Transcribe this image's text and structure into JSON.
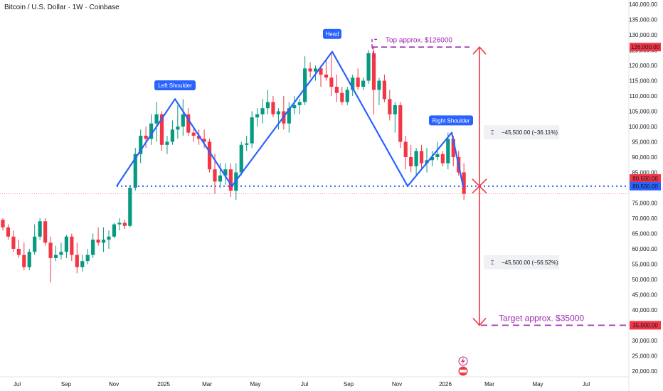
{
  "header": {
    "title": "Bitcoin / U.S. Dollar · 1W · Coinbase"
  },
  "chart_data": {
    "type": "candlestick",
    "ylim": [
      20000,
      140000
    ],
    "y_ticks": [
      20000,
      25000,
      30000,
      35000,
      40000,
      45000,
      50000,
      55000,
      60000,
      65000,
      70000,
      75000,
      80000,
      85000,
      90000,
      95000,
      100000,
      105000,
      110000,
      115000,
      120000,
      125000,
      130000,
      135000,
      140000
    ],
    "x_labels": [
      "Jul",
      "Sep",
      "Nov",
      "2025",
      "Mar",
      "May",
      "Jul",
      "Sep",
      "Nov",
      "2026",
      "Mar",
      "May",
      "Jul"
    ],
    "candles": [
      [
        69500,
        70000,
        66000,
        67000
      ],
      [
        67000,
        68000,
        63000,
        64000
      ],
      [
        64000,
        66000,
        59000,
        60000
      ],
      [
        60000,
        63000,
        57000,
        58000
      ],
      [
        58000,
        62000,
        53000,
        54000
      ],
      [
        54000,
        60000,
        53000,
        59000
      ],
      [
        59000,
        68000,
        58000,
        64000
      ],
      [
        64000,
        70000,
        63000,
        69000
      ],
      [
        69000,
        70000,
        61000,
        62000
      ],
      [
        62000,
        64000,
        49000,
        57000
      ],
      [
        57000,
        61000,
        56000,
        58000
      ],
      [
        58000,
        62000,
        56500,
        59000
      ],
      [
        59000,
        64500,
        57000,
        64000
      ],
      [
        64000,
        65000,
        56000,
        58000
      ],
      [
        58000,
        62000,
        52000,
        54000
      ],
      [
        54000,
        58000,
        52500,
        56000
      ],
      [
        56000,
        60000,
        55000,
        58000
      ],
      [
        58000,
        65000,
        57000,
        63000
      ],
      [
        63000,
        67000,
        61000,
        62000
      ],
      [
        62000,
        67000,
        59000,
        63000
      ],
      [
        63000,
        66000,
        60000,
        64000
      ],
      [
        64000,
        68500,
        63500,
        68000
      ],
      [
        68000,
        70000,
        66000,
        68500
      ],
      [
        68500,
        69500,
        66500,
        67500
      ],
      [
        67500,
        81000,
        67000,
        80000
      ],
      [
        80000,
        93000,
        79000,
        91000
      ],
      [
        91000,
        99000,
        88000,
        97000
      ],
      [
        97000,
        100000,
        93000,
        96000
      ],
      [
        96000,
        104000,
        94000,
        101000
      ],
      [
        101000,
        108000,
        95000,
        104000
      ],
      [
        104000,
        105000,
        92000,
        94000
      ],
      [
        94000,
        97000,
        91000,
        95000
      ],
      [
        95000,
        102000,
        94000,
        99000
      ],
      [
        99000,
        107000,
        96000,
        100000
      ],
      [
        100000,
        109000,
        97000,
        104000
      ],
      [
        104000,
        106000,
        97000,
        98000
      ],
      [
        98000,
        100000,
        95000,
        97000
      ],
      [
        97000,
        99000,
        94000,
        96000
      ],
      [
        96000,
        99000,
        93000,
        95000
      ],
      [
        95000,
        96000,
        85000,
        86000
      ],
      [
        86000,
        91000,
        78000,
        82000
      ],
      [
        82000,
        88000,
        80000,
        84000
      ],
      [
        84000,
        88000,
        81000,
        86000
      ],
      [
        86000,
        88000,
        77000,
        79000
      ],
      [
        79000,
        88000,
        76000,
        85000
      ],
      [
        85000,
        95000,
        84000,
        94000
      ],
      [
        94000,
        97000,
        92000,
        94500
      ],
      [
        94500,
        105000,
        93000,
        103000
      ],
      [
        103000,
        106000,
        100000,
        104000
      ],
      [
        104000,
        109000,
        101000,
        106000
      ],
      [
        106000,
        112000,
        104000,
        108000
      ],
      [
        108000,
        110000,
        103000,
        104000
      ],
      [
        104000,
        106000,
        99000,
        105000
      ],
      [
        105000,
        110000,
        99000,
        101000
      ],
      [
        101000,
        108000,
        98000,
        106000
      ],
      [
        106000,
        110000,
        104000,
        107000
      ],
      [
        107000,
        109000,
        104000,
        108000
      ],
      [
        108000,
        123000,
        107000,
        119000
      ],
      [
        119000,
        121000,
        116000,
        118000
      ],
      [
        118000,
        120000,
        115000,
        119000
      ],
      [
        119000,
        120000,
        113000,
        117000
      ],
      [
        117000,
        122000,
        115000,
        116000
      ],
      [
        116000,
        124000,
        110000,
        113000
      ],
      [
        113000,
        117000,
        108000,
        111000
      ],
      [
        111000,
        113000,
        107000,
        108000
      ],
      [
        108000,
        113000,
        107000,
        112000
      ],
      [
        112000,
        117000,
        110000,
        116000
      ],
      [
        116000,
        119000,
        112000,
        113000
      ],
      [
        113000,
        116000,
        112000,
        115000
      ],
      [
        115000,
        125000,
        114000,
        124000
      ],
      [
        124000,
        126000,
        104000,
        112000
      ],
      [
        112000,
        116000,
        107000,
        115000
      ],
      [
        115000,
        117000,
        108000,
        109000
      ],
      [
        109000,
        112000,
        102000,
        104000
      ],
      [
        104000,
        108000,
        98000,
        107000
      ],
      [
        107000,
        108000,
        93000,
        95000
      ],
      [
        95000,
        97000,
        86000,
        90000
      ],
      [
        90000,
        94000,
        85000,
        87000
      ],
      [
        87000,
        93000,
        84000,
        92000
      ],
      [
        92000,
        94000,
        86000,
        88000
      ],
      [
        88000,
        93000,
        85000,
        89000
      ],
      [
        89000,
        92000,
        87000,
        90000
      ],
      [
        90000,
        95000,
        89000,
        91000
      ],
      [
        91000,
        92000,
        87000,
        88000
      ],
      [
        88000,
        98000,
        86000,
        96000
      ],
      [
        96000,
        97000,
        87000,
        90000
      ],
      [
        90000,
        92000,
        84000,
        85000
      ],
      [
        85000,
        88000,
        76000,
        78000
      ]
    ],
    "price_labels": {
      "top": "126,000.00",
      "neckline_a": "80,500.00",
      "neckline_b": "80,500.00",
      "target": "35,000.00"
    },
    "pattern": {
      "left_shoulder": "Left Shoulder",
      "head": "Head",
      "right_shoulder": "Right Shoulder",
      "neckline": 80500,
      "top": 126000,
      "target": 35000,
      "last": 78000,
      "colors": {
        "up": "#089981",
        "down": "#f23645",
        "pattern": "#2962ff",
        "annotation": "#9c27b0",
        "measure": "#f23645",
        "last_line": "#f23645"
      }
    },
    "annotations": {
      "top_text": "Top approx. $126000",
      "target_text": "Target approx. $35000",
      "measure_up": "−45,500.00 (−36.11%)",
      "measure_down": "−45,500.00 (−56.52%)"
    }
  }
}
